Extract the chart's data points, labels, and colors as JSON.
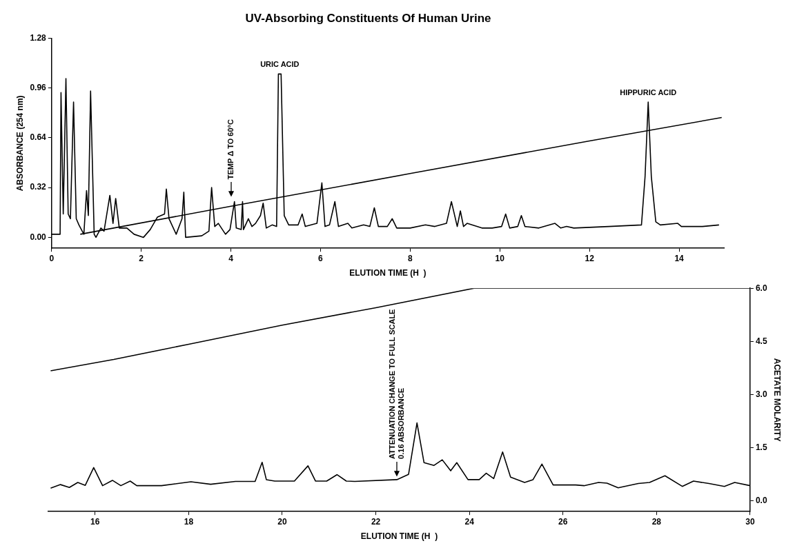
{
  "chart_data": [
    {
      "type": "line",
      "title": "UV-Absorbing Constituents Of Human Urine",
      "xlabel": "ELUTION TIME (H  )",
      "ylabel": "ABSORBANCE (254 nm)",
      "xlim": [
        0,
        15
      ],
      "xticks": [
        0,
        2,
        4,
        6,
        8,
        10,
        12,
        14
      ],
      "ylim": [
        -0.07,
        1.28
      ],
      "yticks": [
        {
          "value": 0,
          "label": "0.00"
        },
        0.32,
        0.64,
        0.96,
        1.28
      ],
      "grid": false,
      "marker": "none",
      "series": [
        {
          "color": "#000000",
          "x": [
            0,
            0.19,
            0.21,
            0.26,
            0.32,
            0.37,
            0.42,
            0.49,
            0.55,
            0.61,
            0.72,
            0.78,
            0.82,
            0.87,
            0.95,
            0.99,
            1.1,
            1.17,
            1.3,
            1.37,
            1.43,
            1.51,
            1.68,
            1.84,
            2.05,
            2.2,
            2.36,
            2.52,
            2.56,
            2.62,
            2.78,
            2.91,
            2.95,
            2.99,
            3.35,
            3.51,
            3.57,
            3.64,
            3.72,
            3.88,
            3.98,
            4.08,
            4.12,
            4.23,
            4.26,
            4.28,
            4.39,
            4.47,
            4.55,
            4.66,
            4.72,
            4.79,
            4.92,
            5.02,
            5.06,
            5.12,
            5.19,
            5.29,
            5.5,
            5.59,
            5.66,
            5.92,
            6.03,
            6.1,
            6.2,
            6.32,
            6.4,
            6.61,
            6.7,
            6.96,
            7.1,
            7.2,
            7.29,
            7.49,
            7.6,
            7.7,
            8.0,
            8.34,
            8.55,
            8.81,
            8.92,
            9.05,
            9.12,
            9.19,
            9.27,
            9.6,
            9.83,
            10.04,
            10.13,
            10.22,
            10.4,
            10.48,
            10.56,
            10.87,
            11.23,
            11.36,
            11.49,
            11.65,
            12.43,
            13.16,
            13.24,
            13.31,
            13.38,
            13.48,
            13.58,
            13.97,
            14.05,
            14.52,
            14.89
          ],
          "values": [
            0.02,
            0.02,
            0.93,
            0.15,
            1.02,
            0.15,
            0.12,
            0.87,
            0.12,
            0.08,
            0.02,
            0.3,
            0.14,
            0.94,
            0.02,
            0.0,
            0.06,
            0.04,
            0.27,
            0.09,
            0.25,
            0.06,
            0.06,
            0.02,
            0.0,
            0.05,
            0.13,
            0.15,
            0.31,
            0.12,
            0.02,
            0.12,
            0.29,
            0.0,
            0.01,
            0.04,
            0.32,
            0.07,
            0.09,
            0.02,
            0.05,
            0.23,
            0.06,
            0.05,
            0.23,
            0.05,
            0.12,
            0.07,
            0.09,
            0.14,
            0.22,
            0.06,
            0.08,
            0.07,
            1.05,
            1.05,
            0.14,
            0.08,
            0.08,
            0.15,
            0.07,
            0.09,
            0.35,
            0.07,
            0.08,
            0.23,
            0.07,
            0.09,
            0.06,
            0.08,
            0.07,
            0.19,
            0.07,
            0.07,
            0.12,
            0.06,
            0.06,
            0.08,
            0.07,
            0.09,
            0.23,
            0.07,
            0.17,
            0.07,
            0.09,
            0.06,
            0.06,
            0.07,
            0.15,
            0.06,
            0.07,
            0.14,
            0.07,
            0.06,
            0.09,
            0.06,
            0.07,
            0.06,
            0.07,
            0.08,
            0.39,
            0.87,
            0.39,
            0.1,
            0.08,
            0.09,
            0.07,
            0.07,
            0.08
          ]
        },
        {
          "color": "#000000",
          "x": [
            0.64,
            4,
            8,
            12,
            14.95
          ],
          "values": [
            0.02,
            0.2,
            0.41,
            0.62,
            0.77
          ]
        }
      ],
      "annotations": [
        {
          "text": "URIC ACID",
          "x": 5.09,
          "y": 1.05
        },
        {
          "text": "HIPPURIC ACID",
          "x": 13.31,
          "y": 0.87
        },
        {
          "text": "TEMP Δ TO 60°C",
          "x": 4.0,
          "y": 0.24
        }
      ]
    },
    {
      "type": "line",
      "xlabel": "ELUTION TIME (H  )",
      "y2label": "ACETATE MOLARITY",
      "xlim": [
        15,
        30
      ],
      "xticks": [
        16,
        18,
        20,
        22,
        24,
        26,
        28,
        30
      ],
      "y2lim": [
        -0.3,
        6.0
      ],
      "y2ticks": [
        {
          "value": 0,
          "label": "0.0"
        },
        1.5,
        {
          "value": 3,
          "label": "3.0"
        },
        4.5,
        {
          "value": 6,
          "label": "6.0"
        }
      ],
      "grid": false,
      "marker": "none",
      "series": [
        {
          "color": "#000000",
          "axis": "y2",
          "x": [
            15.05,
            15.26,
            15.45,
            15.63,
            15.79,
            15.97,
            16.16,
            16.37,
            16.55,
            16.75,
            16.89,
            17.42,
            18.05,
            18.47,
            19.0,
            19.42,
            19.57,
            19.66,
            19.84,
            20.26,
            20.55,
            20.71,
            20.95,
            21.17,
            21.37,
            21.55,
            22.45,
            22.7,
            22.88,
            23.03,
            23.24,
            23.42,
            23.6,
            23.73,
            23.97,
            24.21,
            24.36,
            24.52,
            24.71,
            24.88,
            25.18,
            25.36,
            25.55,
            25.79,
            26.27,
            26.45,
            26.76,
            26.94,
            27.18,
            27.61,
            27.85,
            28.18,
            28.55,
            28.79,
            29.12,
            29.45,
            29.67,
            30
          ],
          "values": [
            0.36,
            0.46,
            0.38,
            0.52,
            0.44,
            0.94,
            0.43,
            0.58,
            0.43,
            0.56,
            0.43,
            0.43,
            0.54,
            0.47,
            0.55,
            0.55,
            1.09,
            0.6,
            0.56,
            0.56,
            0.99,
            0.56,
            0.56,
            0.74,
            0.56,
            0.55,
            0.6,
            0.75,
            2.2,
            1.08,
            1.0,
            1.16,
            0.85,
            1.08,
            0.6,
            0.6,
            0.78,
            0.63,
            1.38,
            0.67,
            0.52,
            0.6,
            1.04,
            0.45,
            0.45,
            0.43,
            0.52,
            0.5,
            0.37,
            0.49,
            0.52,
            0.71,
            0.41,
            0.56,
            0.49,
            0.41,
            0.52,
            0.43
          ]
        },
        {
          "color": "#000000",
          "axis": "y2",
          "x": [
            15.05,
            16.4,
            18,
            20,
            22,
            24.1,
            30
          ],
          "values": [
            3.67,
            3.99,
            4.42,
            4.96,
            5.45,
            6.0,
            6.0
          ]
        }
      ],
      "annotations": [
        {
          "text": "ATTENUATION CHANGE TO FULL SCALE 0.16 ABSORBANCE",
          "x": 22.45
        }
      ]
    }
  ]
}
